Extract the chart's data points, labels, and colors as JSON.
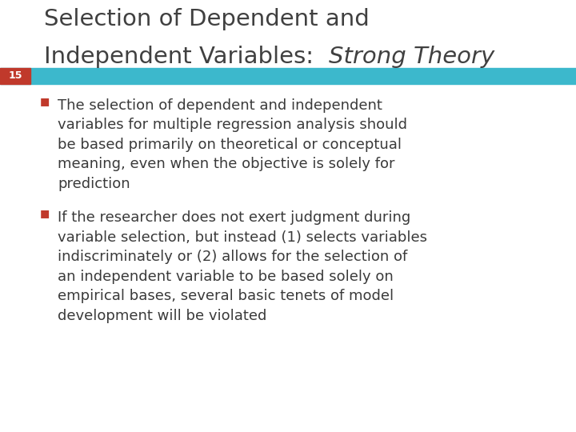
{
  "title_line1": "Selection of Dependent and",
  "title_line2_normal": "Independent Variables:  ",
  "title_line2_italic": "Strong Theory",
  "slide_number": "15",
  "bar_color": "#3cb8cc",
  "red_box_color": "#c0392b",
  "background_color": "#ffffff",
  "title_color": "#404040",
  "text_color": "#3a3a3a",
  "bullet_color": "#c0392b",
  "slide_num_color": "#ffffff",
  "bullet1": "The selection of dependent and independent\nvariables for multiple regression analysis should\nbe based primarily on theoretical or conceptual\nmeaning, even when the objective is solely for\nprediction",
  "bullet2": "If the researcher does not exert judgment during\nvariable selection, but instead (1) selects variables\nindiscriminately or (2) allows for the selection of\nan independent variable to be based solely on\nempirical bases, several basic tenets of model\ndevelopment will be violated",
  "title_fontsize": 21,
  "bullet_fontsize": 13,
  "slide_num_fontsize": 9,
  "figwidth": 7.2,
  "figheight": 5.4,
  "dpi": 100
}
